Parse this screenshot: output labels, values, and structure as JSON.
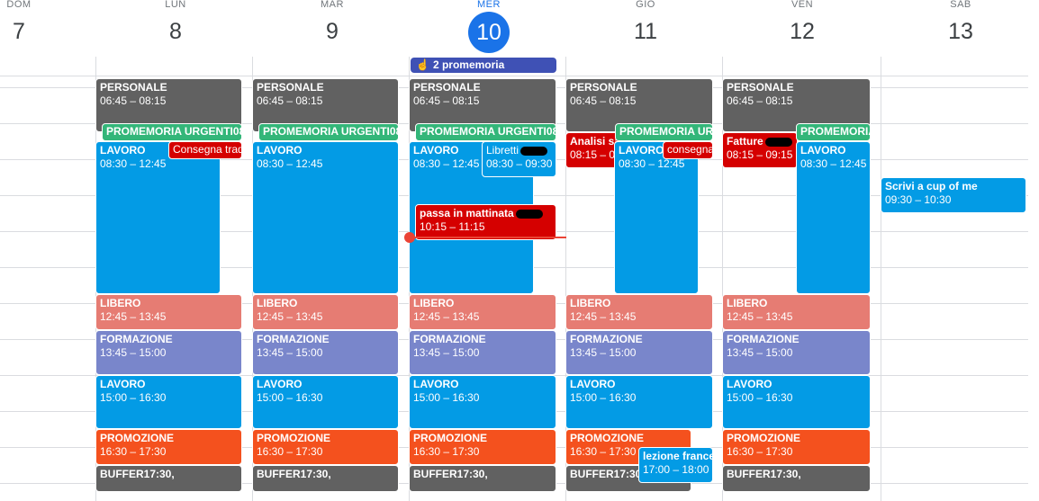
{
  "days": [
    {
      "dow": "DOM",
      "num": "7"
    },
    {
      "dow": "LUN",
      "num": "8"
    },
    {
      "dow": "MAR",
      "num": "9"
    },
    {
      "dow": "MER",
      "num": "10"
    },
    {
      "dow": "GIO",
      "num": "11"
    },
    {
      "dow": "VEN",
      "num": "12"
    },
    {
      "dow": "SAB",
      "num": "13"
    }
  ],
  "reminder": {
    "label": "2 promemoria"
  },
  "ev": {
    "personale": {
      "title": "PERSONALE",
      "time": "06:45 – 08:15"
    },
    "promemoria": {
      "title": "PROMEMORIA URGENTI08:"
    },
    "promemoria_short": {
      "title": "PROMEMORIA URG"
    },
    "promemoria_fri": {
      "title": "PROMEMORIA"
    },
    "lavoro1": {
      "title": "LAVORO",
      "time": "08:30 – 12:45"
    },
    "consegna_tra": {
      "title": "Consegna trad"
    },
    "libretti": {
      "title": "Libretti",
      "time": "08:30 – 09:30"
    },
    "passa": {
      "title": "passa in mattinata",
      "time": "10:15 – 11:15"
    },
    "analisi": {
      "title": "Analisi sa",
      "time": "08:15 – 0"
    },
    "consegna": {
      "title": "consegna"
    },
    "fatture": {
      "title": "Fatture",
      "time": "08:15 – 09:15"
    },
    "libero": {
      "title": "LIBERO",
      "time": "12:45 – 13:45"
    },
    "formazione": {
      "title": "FORMAZIONE",
      "time": "13:45 – 15:00"
    },
    "lavoro2": {
      "title": "LAVORO",
      "time": "15:00 – 16:30"
    },
    "promozione": {
      "title": "PROMOZIONE",
      "time": "16:30 – 17:30"
    },
    "buffer": {
      "title": "BUFFER17:30,"
    },
    "lezione": {
      "title": "lezione france",
      "time": "17:00 – 18:00"
    },
    "scrivi": {
      "title": "Scrivi a cup of me",
      "time": "09:30 – 10:30"
    }
  },
  "colors": {
    "personale": "#616161",
    "promemoria": "#33b679",
    "lavoro": "#039be5",
    "red": "#d50000",
    "libero": "#e67c73",
    "formazione": "#7986cb",
    "promozione": "#f4511e",
    "buffer": "#616161",
    "today": "#1a73e8",
    "now": "#ea4335"
  }
}
